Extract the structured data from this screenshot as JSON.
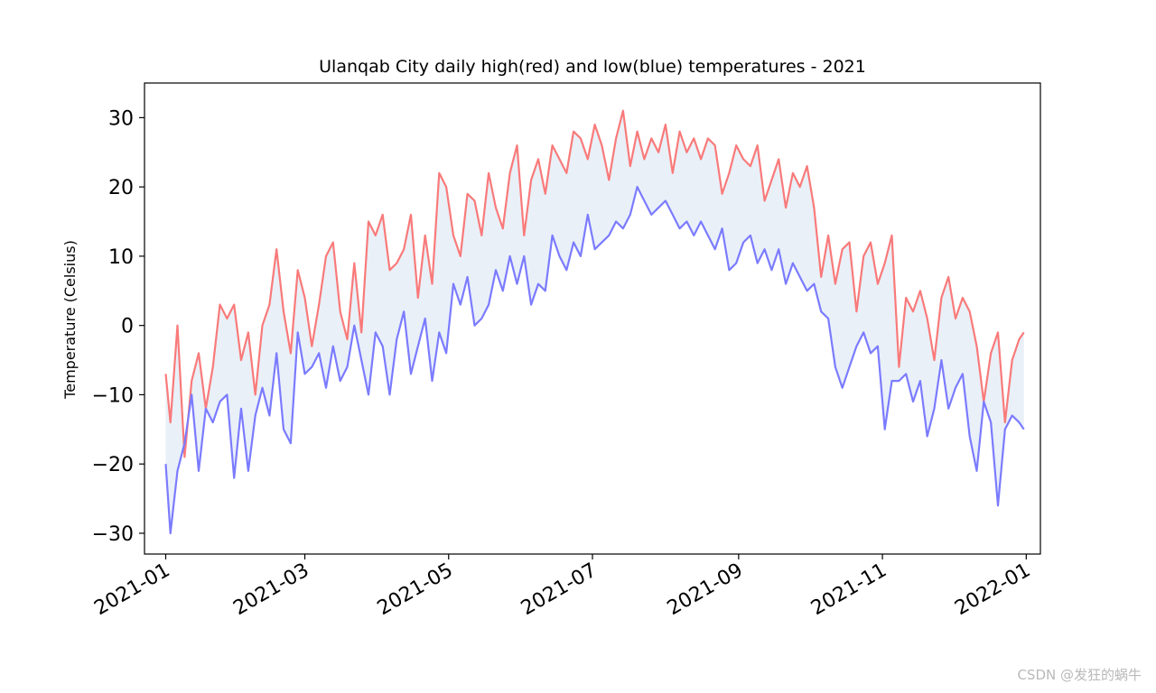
{
  "chart_data": {
    "type": "line",
    "title": "Ulanqab City daily high(red) and low(blue) temperatures - 2021",
    "xlabel": "",
    "ylabel": "Temperature (Celsius)",
    "xlim": [
      "2020-12-23",
      "2022-01-07"
    ],
    "ylim": [
      -33,
      35
    ],
    "y_ticks": [
      -30,
      -20,
      -10,
      0,
      10,
      20,
      30
    ],
    "x_ticks": [
      "2021-01",
      "2021-03",
      "2021-05",
      "2021-07",
      "2021-09",
      "2021-11",
      "2022-01"
    ],
    "x_tick_dates": [
      "2021-01-01",
      "2021-03-01",
      "2021-05-01",
      "2021-07-01",
      "2021-09-01",
      "2021-11-01",
      "2022-01-01"
    ],
    "grid": false,
    "fill_between": {
      "color": "#e9f0f8"
    },
    "series": [
      {
        "color": "#f97a7a",
        "x": [
          "2021-01-01",
          "2021-01-03",
          "2021-01-06",
          "2021-01-09",
          "2021-01-12",
          "2021-01-15",
          "2021-01-18",
          "2021-01-21",
          "2021-01-24",
          "2021-01-27",
          "2021-01-30",
          "2021-02-02",
          "2021-02-05",
          "2021-02-08",
          "2021-02-11",
          "2021-02-14",
          "2021-02-17",
          "2021-02-20",
          "2021-02-23",
          "2021-02-26",
          "2021-03-01",
          "2021-03-04",
          "2021-03-07",
          "2021-03-10",
          "2021-03-13",
          "2021-03-16",
          "2021-03-19",
          "2021-03-22",
          "2021-03-25",
          "2021-03-28",
          "2021-03-31",
          "2021-04-03",
          "2021-04-06",
          "2021-04-09",
          "2021-04-12",
          "2021-04-15",
          "2021-04-18",
          "2021-04-21",
          "2021-04-24",
          "2021-04-27",
          "2021-04-30",
          "2021-05-03",
          "2021-05-06",
          "2021-05-09",
          "2021-05-12",
          "2021-05-15",
          "2021-05-18",
          "2021-05-21",
          "2021-05-24",
          "2021-05-27",
          "2021-05-30",
          "2021-06-02",
          "2021-06-05",
          "2021-06-08",
          "2021-06-11",
          "2021-06-14",
          "2021-06-17",
          "2021-06-20",
          "2021-06-23",
          "2021-06-26",
          "2021-06-29",
          "2021-07-02",
          "2021-07-05",
          "2021-07-08",
          "2021-07-11",
          "2021-07-14",
          "2021-07-17",
          "2021-07-20",
          "2021-07-23",
          "2021-07-26",
          "2021-07-29",
          "2021-08-01",
          "2021-08-04",
          "2021-08-07",
          "2021-08-10",
          "2021-08-13",
          "2021-08-16",
          "2021-08-19",
          "2021-08-22",
          "2021-08-25",
          "2021-08-28",
          "2021-08-31",
          "2021-09-03",
          "2021-09-06",
          "2021-09-09",
          "2021-09-12",
          "2021-09-15",
          "2021-09-18",
          "2021-09-21",
          "2021-09-24",
          "2021-09-27",
          "2021-09-30",
          "2021-10-03",
          "2021-10-06",
          "2021-10-09",
          "2021-10-12",
          "2021-10-15",
          "2021-10-18",
          "2021-10-21",
          "2021-10-24",
          "2021-10-27",
          "2021-10-30",
          "2021-11-02",
          "2021-11-05",
          "2021-11-08",
          "2021-11-11",
          "2021-11-14",
          "2021-11-17",
          "2021-11-20",
          "2021-11-23",
          "2021-11-26",
          "2021-11-29",
          "2021-12-02",
          "2021-12-05",
          "2021-12-08",
          "2021-12-11",
          "2021-12-14",
          "2021-12-17",
          "2021-12-20",
          "2021-12-23",
          "2021-12-26",
          "2021-12-29",
          "2021-12-31"
        ],
        "y": [
          -7,
          -14,
          0,
          -19,
          -8,
          -4,
          -12,
          -6,
          3,
          1,
          3,
          -5,
          -1,
          -10,
          0,
          3,
          11,
          2,
          -4,
          8,
          4,
          -3,
          3,
          10,
          12,
          2,
          -2,
          9,
          -1,
          15,
          13,
          16,
          8,
          9,
          11,
          16,
          4,
          13,
          6,
          22,
          20,
          13,
          10,
          19,
          18,
          13,
          22,
          17,
          14,
          22,
          26,
          13,
          21,
          24,
          19,
          26,
          24,
          22,
          28,
          27,
          24,
          29,
          26,
          21,
          27,
          31,
          23,
          28,
          24,
          27,
          25,
          29,
          22,
          28,
          25,
          27,
          24,
          27,
          26,
          19,
          22,
          26,
          24,
          23,
          26,
          18,
          21,
          24,
          17,
          22,
          20,
          23,
          17,
          7,
          13,
          6,
          11,
          12,
          2,
          10,
          12,
          6,
          9,
          13,
          -6,
          4,
          2,
          5,
          1,
          -5,
          4,
          7,
          1,
          4,
          2,
          -3,
          -11,
          -4,
          -1,
          -14,
          -5,
          -2,
          -1
        ],
        "name": ""
      },
      {
        "color": "#7b7bff",
        "x": [
          "2021-01-01",
          "2021-01-03",
          "2021-01-06",
          "2021-01-09",
          "2021-01-12",
          "2021-01-15",
          "2021-01-18",
          "2021-01-21",
          "2021-01-24",
          "2021-01-27",
          "2021-01-30",
          "2021-02-02",
          "2021-02-05",
          "2021-02-08",
          "2021-02-11",
          "2021-02-14",
          "2021-02-17",
          "2021-02-20",
          "2021-02-23",
          "2021-02-26",
          "2021-03-01",
          "2021-03-04",
          "2021-03-07",
          "2021-03-10",
          "2021-03-13",
          "2021-03-16",
          "2021-03-19",
          "2021-03-22",
          "2021-03-25",
          "2021-03-28",
          "2021-03-31",
          "2021-04-03",
          "2021-04-06",
          "2021-04-09",
          "2021-04-12",
          "2021-04-15",
          "2021-04-18",
          "2021-04-21",
          "2021-04-24",
          "2021-04-27",
          "2021-04-30",
          "2021-05-03",
          "2021-05-06",
          "2021-05-09",
          "2021-05-12",
          "2021-05-15",
          "2021-05-18",
          "2021-05-21",
          "2021-05-24",
          "2021-05-27",
          "2021-05-30",
          "2021-06-02",
          "2021-06-05",
          "2021-06-08",
          "2021-06-11",
          "2021-06-14",
          "2021-06-17",
          "2021-06-20",
          "2021-06-23",
          "2021-06-26",
          "2021-06-29",
          "2021-07-02",
          "2021-07-05",
          "2021-07-08",
          "2021-07-11",
          "2021-07-14",
          "2021-07-17",
          "2021-07-20",
          "2021-07-23",
          "2021-07-26",
          "2021-07-29",
          "2021-08-01",
          "2021-08-04",
          "2021-08-07",
          "2021-08-10",
          "2021-08-13",
          "2021-08-16",
          "2021-08-19",
          "2021-08-22",
          "2021-08-25",
          "2021-08-28",
          "2021-08-31",
          "2021-09-03",
          "2021-09-06",
          "2021-09-09",
          "2021-09-12",
          "2021-09-15",
          "2021-09-18",
          "2021-09-21",
          "2021-09-24",
          "2021-09-27",
          "2021-09-30",
          "2021-10-03",
          "2021-10-06",
          "2021-10-09",
          "2021-10-12",
          "2021-10-15",
          "2021-10-18",
          "2021-10-21",
          "2021-10-24",
          "2021-10-27",
          "2021-10-30",
          "2021-11-02",
          "2021-11-05",
          "2021-11-08",
          "2021-11-11",
          "2021-11-14",
          "2021-11-17",
          "2021-11-20",
          "2021-11-23",
          "2021-11-26",
          "2021-11-29",
          "2021-12-02",
          "2021-12-05",
          "2021-12-08",
          "2021-12-11",
          "2021-12-14",
          "2021-12-17",
          "2021-12-20",
          "2021-12-23",
          "2021-12-26",
          "2021-12-29",
          "2021-12-31"
        ],
        "y": [
          -20,
          -30,
          -21,
          -17,
          -10,
          -21,
          -12,
          -14,
          -11,
          -10,
          -22,
          -12,
          -21,
          -13,
          -9,
          -13,
          -4,
          -15,
          -17,
          -1,
          -7,
          -6,
          -4,
          -9,
          -3,
          -8,
          -6,
          0,
          -5,
          -10,
          -1,
          -3,
          -10,
          -2,
          2,
          -7,
          -3,
          1,
          -8,
          -1,
          -4,
          6,
          3,
          7,
          0,
          1,
          3,
          8,
          5,
          10,
          6,
          10,
          3,
          6,
          5,
          13,
          10,
          8,
          12,
          10,
          16,
          11,
          12,
          13,
          15,
          14,
          16,
          20,
          18,
          16,
          17,
          18,
          16,
          14,
          15,
          13,
          15,
          13,
          11,
          14,
          8,
          9,
          12,
          13,
          9,
          11,
          8,
          11,
          6,
          9,
          7,
          5,
          6,
          2,
          1,
          -6,
          -9,
          -6,
          -3,
          -1,
          -4,
          -3,
          -15,
          -8,
          -8,
          -7,
          -11,
          -8,
          -16,
          -12,
          -5,
          -12,
          -9,
          -7,
          -16,
          -21,
          -11,
          -14,
          -26,
          -15,
          -13,
          -14,
          -15
        ],
        "name": ""
      }
    ]
  },
  "watermark": "CSDN @发狂的蜗牛"
}
